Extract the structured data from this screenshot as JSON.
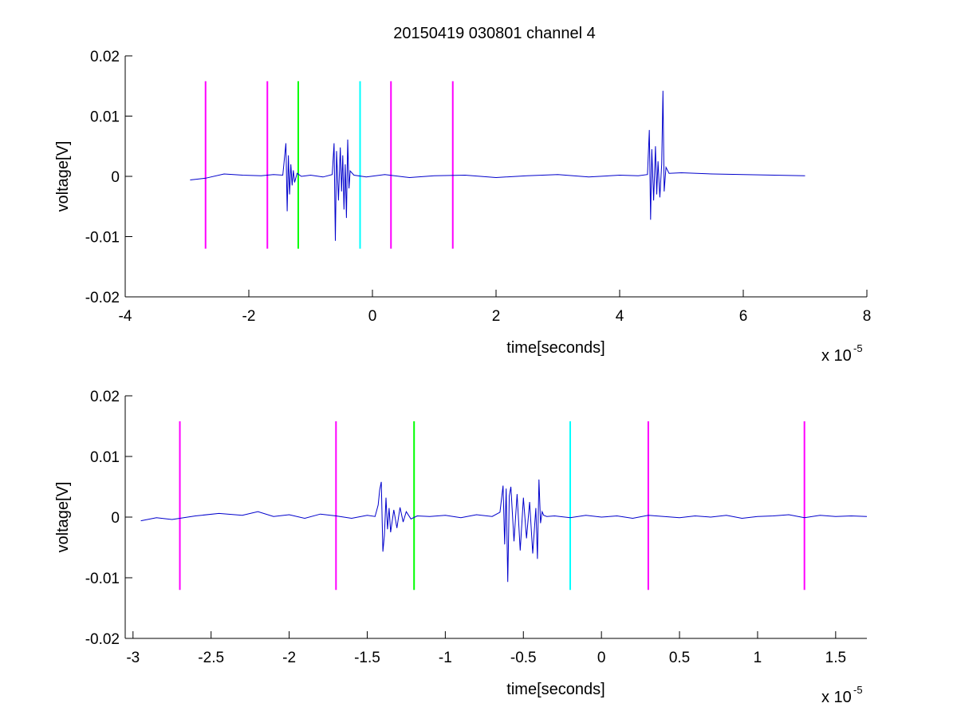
{
  "figure": {
    "title": "20150419 030801 channel 4"
  },
  "chart_data": [
    {
      "type": "line",
      "xlabel": "time[seconds]",
      "ylabel": "voltage[V]",
      "x_multiplier": "x 10",
      "x_exponent": "-5",
      "xlim": [
        -4,
        8
      ],
      "ylim": [
        -0.02,
        0.02
      ],
      "xticks": [
        -4,
        -2,
        0,
        2,
        4,
        6,
        8
      ],
      "xtick_labels": [
        "-4",
        "-2",
        "0",
        "2",
        "4",
        "6",
        "8"
      ],
      "yticks": [
        -0.02,
        -0.01,
        0,
        0.01,
        0.02
      ],
      "ytick_labels": [
        "-0.02",
        "-0.01",
        "0",
        "0.01",
        "0.02"
      ],
      "grid": false,
      "series": [
        {
          "color": "#0000cc",
          "x": [
            -2.95,
            -2.7,
            -2.4,
            -2.1,
            -1.8,
            -1.6,
            -1.45,
            -1.4,
            -1.38,
            -1.36,
            -1.34,
            -1.32,
            -1.3,
            -1.28,
            -1.26,
            -1.22,
            -1.15,
            -1.0,
            -0.8,
            -0.65,
            -0.62,
            -0.6,
            -0.58,
            -0.55,
            -0.52,
            -0.5,
            -0.48,
            -0.46,
            -0.44,
            -0.42,
            -0.4,
            -0.38,
            -0.36,
            -0.3,
            -0.1,
            0.2,
            0.6,
            1.0,
            1.5,
            2.0,
            2.5,
            3.0,
            3.5,
            4.0,
            4.3,
            4.45,
            4.48,
            4.5,
            4.52,
            4.55,
            4.58,
            4.6,
            4.62,
            4.65,
            4.68,
            4.7,
            4.72,
            4.75,
            4.8,
            5.0,
            5.5,
            6.0,
            6.5,
            7.0
          ],
          "y": [
            -0.0006,
            -0.0003,
            0.0004,
            0.0002,
            0.0001,
            0.0003,
            0.0002,
            0.0055,
            -0.0058,
            0.0035,
            -0.003,
            0.002,
            -0.0015,
            0.001,
            -0.001,
            0.0005,
            0.0,
            0.0002,
            -0.0001,
            0.0003,
            0.0055,
            -0.0107,
            0.0042,
            -0.004,
            0.0048,
            -0.0025,
            0.0035,
            -0.0055,
            0.002,
            -0.0069,
            0.0061,
            -0.002,
            0.0009,
            0.0002,
            -0.0001,
            0.0003,
            -0.0002,
            0.0001,
            0.0002,
            -0.0002,
            0.0001,
            0.0003,
            -0.0001,
            0.0002,
            0.0001,
            0.0003,
            0.0077,
            -0.0072,
            0.0045,
            -0.004,
            0.005,
            -0.003,
            0.0025,
            -0.0035,
            0.002,
            0.0142,
            -0.0025,
            0.0015,
            0.0005,
            0.0006,
            0.0004,
            0.0003,
            0.0002,
            0.0001
          ]
        }
      ],
      "markers": [
        {
          "x": -2.7,
          "color": "#ff00ff",
          "ymin": -0.012,
          "ymax": 0.0158
        },
        {
          "x": -1.7,
          "color": "#ff00ff",
          "ymin": -0.012,
          "ymax": 0.0158
        },
        {
          "x": -1.2,
          "color": "#00ff00",
          "ymin": -0.012,
          "ymax": 0.0158
        },
        {
          "x": -0.2,
          "color": "#00ffff",
          "ymin": -0.012,
          "ymax": 0.0158
        },
        {
          "x": 0.3,
          "color": "#ff00ff",
          "ymin": -0.012,
          "ymax": 0.0158
        },
        {
          "x": 1.3,
          "color": "#ff00ff",
          "ymin": -0.012,
          "ymax": 0.0158
        }
      ]
    },
    {
      "type": "line",
      "xlabel": "time[seconds]",
      "ylabel": "voltage[V]",
      "x_multiplier": "x 10",
      "x_exponent": "-5",
      "xlim": [
        -3.05,
        1.7
      ],
      "ylim": [
        -0.02,
        0.02
      ],
      "xticks": [
        -3,
        -2.5,
        -2,
        -1.5,
        -1,
        -0.5,
        0,
        0.5,
        1,
        1.5
      ],
      "xtick_labels": [
        "-3",
        "-2.5",
        "-2",
        "-1.5",
        "-1",
        "-0.5",
        "0",
        "0.5",
        "1",
        "1.5"
      ],
      "yticks": [
        -0.02,
        -0.01,
        0,
        0.01,
        0.02
      ],
      "ytick_labels": [
        "-0.02",
        "-0.01",
        "0",
        "0.01",
        "0.02"
      ],
      "grid": false,
      "series": [
        {
          "color": "#0000cc",
          "x": [
            -2.95,
            -2.85,
            -2.75,
            -2.6,
            -2.45,
            -2.3,
            -2.2,
            -2.1,
            -2.0,
            -1.9,
            -1.8,
            -1.7,
            -1.6,
            -1.5,
            -1.45,
            -1.43,
            -1.42,
            -1.41,
            -1.4,
            -1.39,
            -1.38,
            -1.37,
            -1.36,
            -1.35,
            -1.33,
            -1.31,
            -1.29,
            -1.27,
            -1.25,
            -1.22,
            -1.18,
            -1.1,
            -1.0,
            -0.9,
            -0.8,
            -0.7,
            -0.65,
            -0.63,
            -0.62,
            -0.61,
            -0.6,
            -0.59,
            -0.58,
            -0.56,
            -0.54,
            -0.52,
            -0.5,
            -0.48,
            -0.46,
            -0.44,
            -0.42,
            -0.41,
            -0.4,
            -0.39,
            -0.38,
            -0.37,
            -0.35,
            -0.3,
            -0.2,
            -0.1,
            0.0,
            0.1,
            0.2,
            0.3,
            0.4,
            0.5,
            0.6,
            0.7,
            0.8,
            0.9,
            1.0,
            1.1,
            1.2,
            1.3,
            1.4,
            1.5,
            1.6,
            1.7
          ],
          "y": [
            -0.0006,
            -0.0001,
            -0.0004,
            0.0002,
            0.0006,
            0.0003,
            0.0009,
            0.0001,
            0.0004,
            -0.0002,
            0.0005,
            0.0002,
            -0.0002,
            0.0003,
            0.0001,
            0.002,
            0.0045,
            0.0058,
            -0.0057,
            -0.003,
            0.0032,
            -0.002,
            0.0015,
            -0.0025,
            0.0012,
            -0.0018,
            0.0016,
            -0.0008,
            0.0009,
            -0.0003,
            0.0002,
            0.0001,
            0.0003,
            -0.0001,
            0.0004,
            0.0001,
            0.0008,
            0.0052,
            -0.0045,
            0.0047,
            -0.0107,
            0.0035,
            0.005,
            -0.004,
            0.0038,
            -0.0055,
            0.0032,
            -0.0035,
            0.0025,
            -0.006,
            0.0015,
            -0.0069,
            0.0062,
            -0.001,
            0.0009,
            0.0003,
            0.0001,
            0.0002,
            -0.0001,
            0.0003,
            0.0,
            0.0002,
            -0.0002,
            0.0003,
            0.0001,
            -0.0001,
            0.0002,
            0.0,
            0.0003,
            -0.0002,
            0.0001,
            0.0002,
            0.0004,
            -0.0001,
            0.0003,
            0.0001,
            0.0002,
            0.0001
          ]
        }
      ],
      "markers": [
        {
          "x": -2.7,
          "color": "#ff00ff",
          "ymin": -0.012,
          "ymax": 0.0158
        },
        {
          "x": -1.7,
          "color": "#ff00ff",
          "ymin": -0.012,
          "ymax": 0.0158
        },
        {
          "x": -1.2,
          "color": "#00ff00",
          "ymin": -0.012,
          "ymax": 0.0158
        },
        {
          "x": -0.2,
          "color": "#00ffff",
          "ymin": -0.012,
          "ymax": 0.0158
        },
        {
          "x": 0.3,
          "color": "#ff00ff",
          "ymin": -0.012,
          "ymax": 0.0158
        },
        {
          "x": 1.3,
          "color": "#ff00ff",
          "ymin": -0.012,
          "ymax": 0.0158
        }
      ]
    }
  ]
}
